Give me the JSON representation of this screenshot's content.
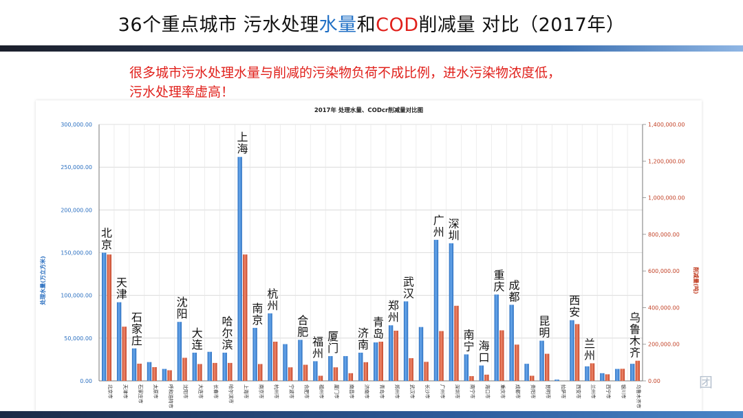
{
  "slide": {
    "title_part1": "36个重点城市 污水处理",
    "title_water": "水量",
    "title_mid": "和",
    "title_cod": "COD",
    "title_part2": "削减量 对比（2017年）",
    "subtitle_line1": "很多城市污水处理水量与削减的污染物负荷不成比例，进水污染物浓度低，",
    "subtitle_line2": "污水处理率虚高！",
    "logo_fragment": "团"
  },
  "colors": {
    "water": "#3a84d6",
    "cod": "#d9573c",
    "title_blue": "#1f6fc5",
    "title_red": "#e0201b"
  },
  "chart_data": {
    "type": "bar",
    "title": "2017年 处理水量、CODcr削减量对比图",
    "ylabel_left": "处理水量(万立方米)",
    "ylabel_right": "削减量(吨)",
    "ylim_left": [
      0,
      300000
    ],
    "ylim_right": [
      0,
      1400000
    ],
    "yticks_left": [
      "0.00",
      "50,000.00",
      "100,000.00",
      "150,000.00",
      "200,000.00",
      "250,000.00",
      "300,000.00"
    ],
    "yticks_right": [
      "0.00",
      "200,000.00",
      "400,000.00",
      "600,000.00",
      "800,000.00",
      "1,000,000.00",
      "1,200,000.00",
      "1,400,000.00"
    ],
    "categories": [
      "北京市",
      "天津市",
      "石家庄市",
      "太原市",
      "呼和浩特市",
      "沈阳市",
      "大连市",
      "长春市",
      "哈尔滨市",
      "上海市",
      "南京市",
      "杭州市",
      "宁波市",
      "合肥市",
      "福州市",
      "厦门市",
      "南昌市",
      "济南市",
      "青岛市",
      "郑州市",
      "武汉市",
      "长沙市",
      "广州市",
      "深圳市",
      "南宁市",
      "海口市",
      "重庆市",
      "成都市",
      "贵阳市",
      "昆明市",
      "拉萨市",
      "西安市",
      "兰州市",
      "西宁市",
      "银川市",
      "乌鲁木齐市"
    ],
    "series": [
      {
        "name": "处理水量",
        "axis": "left",
        "values": [
          150000,
          92000,
          38000,
          22000,
          14000,
          69000,
          33000,
          34000,
          33000,
          262000,
          62000,
          79000,
          43000,
          48000,
          23000,
          29000,
          29000,
          33000,
          45000,
          65000,
          93000,
          63000,
          165000,
          161000,
          31000,
          18000,
          101000,
          89000,
          20000,
          47000,
          1500,
          71000,
          17000,
          9000,
          14000,
          20000
        ]
      },
      {
        "name": "削减量",
        "axis": "right",
        "values": [
          690000,
          296000,
          94000,
          75000,
          58000,
          126000,
          92000,
          98000,
          98000,
          690000,
          92000,
          214000,
          74000,
          88000,
          28000,
          74000,
          42000,
          102000,
          214000,
          274000,
          124000,
          104000,
          272000,
          410000,
          26000,
          34000,
          276000,
          198000,
          28000,
          148000,
          0,
          310000,
          96000,
          36000,
          66000,
          110000
        ]
      }
    ],
    "annotations": [
      "北京",
      "天津",
      "石家庄",
      "哈尔滨",
      "沈阳",
      "大连",
      "上海",
      "南京",
      "杭州",
      "合肥",
      "福州",
      "厦门",
      "济南",
      "青岛",
      "郑州",
      "武汉",
      "广州",
      "深圳",
      "南宁",
      "海口",
      "重庆",
      "成都",
      "昆明",
      "西安",
      "兰州",
      "乌鲁木齐"
    ],
    "grid": true,
    "legend": "none"
  }
}
